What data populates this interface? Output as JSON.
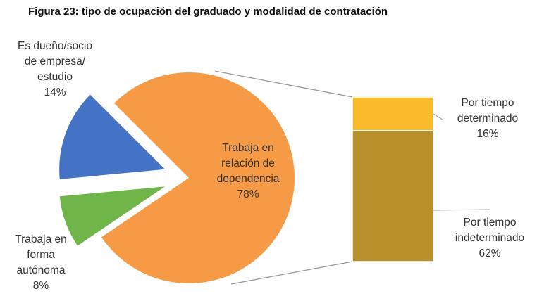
{
  "chart_data": {
    "type": "bar-of-pie",
    "title": "Figura 23: tipo de ocupación del graduado y modalidad de contratación",
    "categories": [
      "Trabaja en\nrelación de\ndependencia",
      "Es dueño/socio\nde empresa/\nestudio",
      "Trabaja en\nforma\nautónoma"
    ],
    "values": [
      78,
      14,
      8
    ],
    "value_labels": [
      "78%",
      "14%",
      "8%"
    ],
    "colors": [
      "#F79A45",
      "#4472C4",
      "#6FB54A"
    ],
    "bar": {
      "categories": [
        "Por tiempo\ndeterminado",
        "Por tiempo\nindeterminado"
      ],
      "values": [
        16,
        62
      ],
      "value_labels": [
        "16%",
        "62%"
      ],
      "colors": [
        "#FBBA2A",
        "#B8902A"
      ]
    }
  }
}
